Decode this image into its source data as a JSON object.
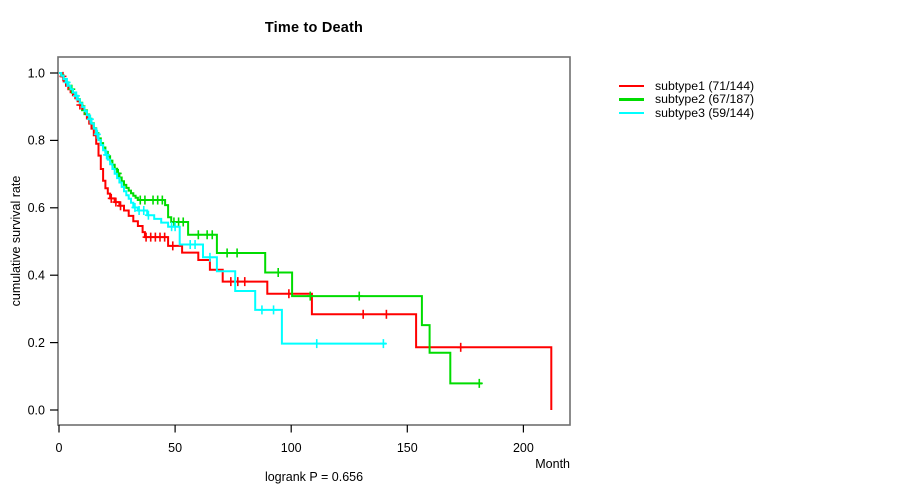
{
  "chart_data": {
    "type": "line",
    "subtype": "kaplan-meier-step-curves",
    "title": "Time to Death",
    "xlabel": "Month",
    "ylabel": "cumulative survival rate",
    "annotation": "logrank P = 0.656",
    "xlim": [
      0,
      220
    ],
    "ylim": [
      0,
      1
    ],
    "x_ticks": [
      0,
      50,
      100,
      150,
      200
    ],
    "y_ticks": [
      "0.0",
      "0.2",
      "0.4",
      "0.6",
      "0.8",
      "1.0"
    ],
    "grid": false,
    "legend_position": "right-outside-top",
    "box_color": "#6f6f6f",
    "axis_color": "#000000",
    "series": [
      {
        "name": "subtype1 (71/144)",
        "color": "#ff0000",
        "end_time": 212,
        "steps": [
          [
            0,
            1.0
          ],
          [
            1,
            0.99
          ],
          [
            2,
            0.975
          ],
          [
            3,
            0.962
          ],
          [
            4,
            0.952
          ],
          [
            5,
            0.943
          ],
          [
            6,
            0.934
          ],
          [
            7,
            0.925
          ],
          [
            8,
            0.916
          ],
          [
            9,
            0.905
          ],
          [
            10,
            0.893
          ],
          [
            11,
            0.878
          ],
          [
            12,
            0.865
          ],
          [
            13,
            0.85
          ],
          [
            14,
            0.835
          ],
          [
            15,
            0.815
          ],
          [
            16,
            0.79
          ],
          [
            17,
            0.755
          ],
          [
            18,
            0.715
          ],
          [
            19,
            0.68
          ],
          [
            20,
            0.658
          ],
          [
            21,
            0.642
          ],
          [
            22,
            0.628
          ],
          [
            24,
            0.617
          ],
          [
            26,
            0.606
          ],
          [
            28,
            0.592
          ],
          [
            30,
            0.576
          ],
          [
            32,
            0.56
          ],
          [
            34,
            0.546
          ],
          [
            36,
            0.528
          ],
          [
            37,
            0.513
          ],
          [
            47,
            0.487
          ],
          [
            53,
            0.467
          ],
          [
            60,
            0.445
          ],
          [
            65,
            0.416
          ],
          [
            70.5,
            0.381
          ],
          [
            89.7,
            0.345
          ],
          [
            108.9,
            0.284
          ],
          [
            153.8,
            0.186
          ],
          [
            212,
            0
          ]
        ],
        "censor_times": [
          1.7,
          9,
          22.5,
          24.5,
          26.5,
          37.5,
          39.5,
          41.5,
          43.5,
          45.5,
          49,
          74,
          77,
          80,
          99,
          131,
          141,
          173
        ]
      },
      {
        "name": "subtype2 (67/187)",
        "color": "#00dc00",
        "end_time": 182.2,
        "steps": [
          [
            0,
            1.0
          ],
          [
            1,
            0.993
          ],
          [
            2,
            0.982
          ],
          [
            3,
            0.972
          ],
          [
            4,
            0.962
          ],
          [
            5,
            0.952
          ],
          [
            6,
            0.942
          ],
          [
            7,
            0.932
          ],
          [
            8,
            0.922
          ],
          [
            9,
            0.912
          ],
          [
            10,
            0.901
          ],
          [
            11,
            0.889
          ],
          [
            12,
            0.877
          ],
          [
            13,
            0.864
          ],
          [
            14,
            0.851
          ],
          [
            15,
            0.836
          ],
          [
            16,
            0.821
          ],
          [
            17,
            0.806
          ],
          [
            18,
            0.792
          ],
          [
            19,
            0.779
          ],
          [
            20,
            0.766
          ],
          [
            21,
            0.753
          ],
          [
            22,
            0.74
          ],
          [
            23,
            0.728
          ],
          [
            24,
            0.716
          ],
          [
            25,
            0.702
          ],
          [
            26,
            0.69
          ],
          [
            27,
            0.679
          ],
          [
            28,
            0.668
          ],
          [
            29,
            0.659
          ],
          [
            30,
            0.651
          ],
          [
            31,
            0.643
          ],
          [
            32,
            0.636
          ],
          [
            33,
            0.63
          ],
          [
            34,
            0.623
          ],
          [
            45.7,
            0.608
          ],
          [
            47,
            0.572
          ],
          [
            48.3,
            0.558
          ],
          [
            55.6,
            0.52
          ],
          [
            68,
            0.466
          ],
          [
            88.8,
            0.408
          ],
          [
            100.4,
            0.338
          ],
          [
            156.3,
            0.252
          ],
          [
            159.6,
            0.17
          ],
          [
            168.5,
            0.079
          ]
        ],
        "censor_times": [
          5.5,
          11,
          25.5,
          35,
          37,
          40.5,
          42.5,
          44.5,
          49.5,
          51.5,
          53.5,
          60,
          63.8,
          66,
          72.4,
          76.7,
          94.4,
          108.2,
          129.3,
          181
        ]
      },
      {
        "name": "subtype3 (59/144)",
        "color": "#00ffff",
        "end_time": 140.9,
        "steps": [
          [
            0,
            1.0
          ],
          [
            1,
            0.992
          ],
          [
            2,
            0.982
          ],
          [
            3,
            0.972
          ],
          [
            4,
            0.962
          ],
          [
            5,
            0.952
          ],
          [
            6,
            0.942
          ],
          [
            7,
            0.932
          ],
          [
            8,
            0.921
          ],
          [
            9,
            0.91
          ],
          [
            10,
            0.899
          ],
          [
            11,
            0.887
          ],
          [
            12,
            0.875
          ],
          [
            13,
            0.863
          ],
          [
            14,
            0.85
          ],
          [
            15,
            0.835
          ],
          [
            16,
            0.818
          ],
          [
            17,
            0.801
          ],
          [
            18,
            0.786
          ],
          [
            19,
            0.771
          ],
          [
            20,
            0.757
          ],
          [
            21,
            0.743
          ],
          [
            22,
            0.729
          ],
          [
            23,
            0.715
          ],
          [
            24,
            0.701
          ],
          [
            25,
            0.688
          ],
          [
            26,
            0.675
          ],
          [
            27,
            0.662
          ],
          [
            28,
            0.649
          ],
          [
            29,
            0.637
          ],
          [
            30,
            0.627
          ],
          [
            31,
            0.615
          ],
          [
            32,
            0.601
          ],
          [
            34,
            0.592
          ],
          [
            38,
            0.578
          ],
          [
            41,
            0.567
          ],
          [
            44,
            0.556
          ],
          [
            47,
            0.544
          ],
          [
            52,
            0.491
          ],
          [
            62,
            0.453
          ],
          [
            68,
            0.412
          ],
          [
            75.9,
            0.353
          ],
          [
            84.5,
            0.297
          ],
          [
            96,
            0.197
          ]
        ],
        "censor_times": [
          3.5,
          7.5,
          13.5,
          16.5,
          20.5,
          32.7,
          34.5,
          36.5,
          38.5,
          48.5,
          50,
          56.5,
          58.6,
          65,
          87.4,
          92.4,
          111,
          139.7
        ]
      }
    ]
  }
}
